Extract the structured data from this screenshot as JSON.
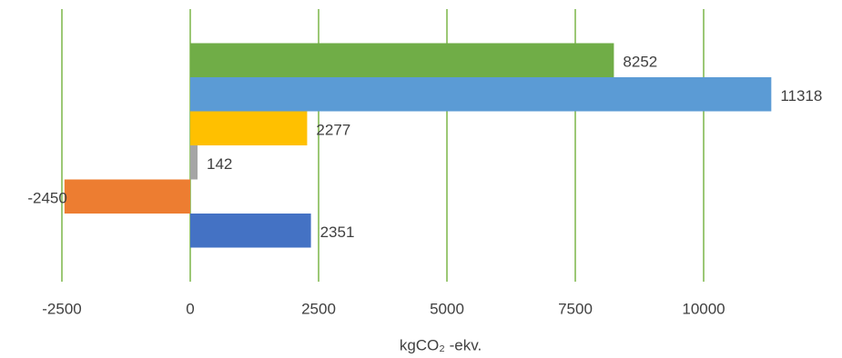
{
  "chart_data": {
    "type": "bar",
    "orientation": "horizontal",
    "x_label": "kgCO₂ -ekv.",
    "categories": [
      null,
      null,
      null,
      null,
      null,
      null
    ],
    "values": [
      8252,
      11318,
      2277,
      142,
      -2450,
      2351
    ],
    "colors": [
      "#70ad47",
      "#5b9bd5",
      "#ffc000",
      "#a5a5a5",
      "#ed7d31",
      "#4472c4"
    ],
    "xlim": [
      -2500,
      12500
    ],
    "xticks": [
      -2500,
      0,
      2500,
      5000,
      7500,
      10000
    ],
    "grid": true,
    "grid_color": "#7cb548",
    "data_labels": true
  }
}
